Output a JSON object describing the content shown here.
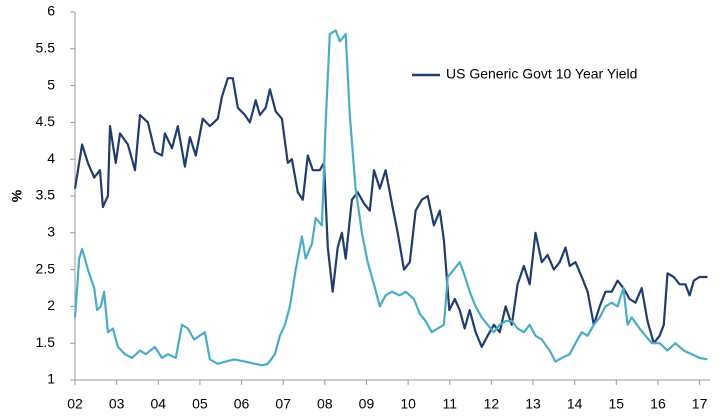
{
  "chart_data": {
    "type": "line",
    "ylabel": "%",
    "xlim": [
      2002,
      2017.25
    ],
    "xticks": [
      {
        "value": 2002,
        "label": "02"
      },
      {
        "value": 2003,
        "label": "03"
      },
      {
        "value": 2004,
        "label": "04"
      },
      {
        "value": 2005,
        "label": "05"
      },
      {
        "value": 2006,
        "label": "06"
      },
      {
        "value": 2007,
        "label": "07"
      },
      {
        "value": 2008,
        "label": "08"
      },
      {
        "value": 2009,
        "label": "09"
      },
      {
        "value": 2010,
        "label": "10"
      },
      {
        "value": 2011,
        "label": "11"
      },
      {
        "value": 2012,
        "label": "12"
      },
      {
        "value": 2013,
        "label": "13"
      },
      {
        "value": 2014,
        "label": "14"
      },
      {
        "value": 2015,
        "label": "15"
      },
      {
        "value": 2016,
        "label": "16"
      },
      {
        "value": 2017,
        "label": "17"
      }
    ],
    "ylim": [
      1,
      6
    ],
    "yticks": [
      1,
      1.5,
      2,
      2.5,
      3,
      3.5,
      4,
      4.5,
      5,
      5.5,
      6
    ],
    "grid": false,
    "legend_position": "top-right",
    "series": [
      {
        "name": "US Generic Govt 10 Year Yield",
        "color": "#1f3d6e",
        "x": [
          2002.0,
          2002.17,
          2002.31,
          2002.46,
          2002.6,
          2002.67,
          2002.79,
          2002.84,
          2002.98,
          2003.08,
          2003.27,
          2003.44,
          2003.56,
          2003.75,
          2003.92,
          2004.09,
          2004.16,
          2004.33,
          2004.47,
          2004.64,
          2004.76,
          2004.9,
          2005.07,
          2005.24,
          2005.43,
          2005.53,
          2005.67,
          2005.79,
          2005.91,
          2006.08,
          2006.2,
          2006.34,
          2006.44,
          2006.58,
          2006.68,
          2006.82,
          2006.97,
          2007.11,
          2007.21,
          2007.35,
          2007.47,
          2007.59,
          2007.71,
          2007.88,
          2007.98,
          2008.07,
          2008.19,
          2008.31,
          2008.41,
          2008.5,
          2008.65,
          2008.79,
          2008.94,
          2009.08,
          2009.18,
          2009.32,
          2009.46,
          2009.61,
          2009.75,
          2009.9,
          2010.04,
          2010.18,
          2010.33,
          2010.47,
          2010.62,
          2010.76,
          2010.86,
          2010.99,
          2011.12,
          2011.24,
          2011.36,
          2011.48,
          2011.62,
          2011.77,
          2011.91,
          2012.06,
          2012.2,
          2012.34,
          2012.49,
          2012.63,
          2012.78,
          2012.92,
          2013.06,
          2013.21,
          2013.35,
          2013.5,
          2013.64,
          2013.78,
          2013.88,
          2014.02,
          2014.17,
          2014.31,
          2014.46,
          2014.6,
          2014.74,
          2014.89,
          2015.03,
          2015.17,
          2015.32,
          2015.46,
          2015.61,
          2015.75,
          2015.9,
          2016.04,
          2016.14,
          2016.23,
          2016.38,
          2016.52,
          2016.66,
          2016.76,
          2016.86,
          2017.0,
          2017.19
        ],
        "values": [
          3.6,
          4.2,
          3.95,
          3.75,
          3.85,
          3.35,
          3.5,
          4.45,
          3.95,
          4.35,
          4.2,
          3.85,
          4.6,
          4.5,
          4.1,
          4.05,
          4.35,
          4.15,
          4.45,
          3.9,
          4.3,
          4.05,
          4.55,
          4.45,
          4.55,
          4.85,
          5.1,
          5.1,
          4.7,
          4.6,
          4.5,
          4.8,
          4.6,
          4.7,
          4.95,
          4.65,
          4.55,
          3.95,
          4.0,
          3.55,
          3.45,
          4.05,
          3.85,
          3.85,
          3.95,
          2.8,
          2.2,
          2.8,
          3.0,
          2.65,
          3.45,
          3.55,
          3.4,
          3.3,
          3.85,
          3.6,
          3.85,
          3.4,
          3.0,
          2.5,
          2.6,
          3.3,
          3.45,
          3.5,
          3.1,
          3.3,
          2.9,
          1.95,
          2.1,
          1.95,
          1.7,
          1.95,
          1.65,
          1.45,
          1.6,
          1.75,
          1.65,
          2.0,
          1.75,
          2.3,
          2.55,
          2.3,
          3.0,
          2.6,
          2.7,
          2.5,
          2.6,
          2.8,
          2.55,
          2.6,
          2.4,
          2.2,
          1.75,
          2.0,
          2.2,
          2.2,
          2.35,
          2.25,
          2.1,
          2.05,
          2.25,
          1.8,
          1.5,
          1.6,
          1.75,
          2.45,
          2.4,
          2.3,
          2.3,
          2.15,
          2.35,
          2.4,
          2.4
        ]
      },
      {
        "color": "#4bacc6",
        "x": [
          2002.0,
          2002.1,
          2002.17,
          2002.31,
          2002.46,
          2002.53,
          2002.62,
          2002.7,
          2002.79,
          2002.91,
          2003.03,
          2003.2,
          2003.37,
          2003.56,
          2003.7,
          2003.92,
          2004.09,
          2004.23,
          2004.42,
          2004.57,
          2004.71,
          2004.86,
          2004.99,
          2005.12,
          2005.24,
          2005.43,
          2005.62,
          2005.82,
          2006.08,
          2006.32,
          2006.49,
          2006.63,
          2006.8,
          2006.92,
          2007.04,
          2007.16,
          2007.3,
          2007.45,
          2007.54,
          2007.69,
          2007.78,
          2007.93,
          2008.02,
          2008.12,
          2008.26,
          2008.36,
          2008.5,
          2008.6,
          2008.74,
          2008.89,
          2009.03,
          2009.18,
          2009.32,
          2009.46,
          2009.61,
          2009.8,
          2009.94,
          2010.14,
          2010.28,
          2010.42,
          2010.57,
          2010.71,
          2010.86,
          2010.95,
          2011.1,
          2011.24,
          2011.34,
          2011.48,
          2011.62,
          2011.77,
          2011.91,
          2012.06,
          2012.2,
          2012.34,
          2012.49,
          2012.63,
          2012.78,
          2012.92,
          2013.06,
          2013.21,
          2013.4,
          2013.54,
          2013.69,
          2013.88,
          2014.02,
          2014.17,
          2014.31,
          2014.46,
          2014.6,
          2014.74,
          2014.89,
          2015.03,
          2015.17,
          2015.27,
          2015.37,
          2015.56,
          2015.7,
          2015.85,
          2016.04,
          2016.23,
          2016.42,
          2016.62,
          2016.81,
          2017.0,
          2017.19
        ],
        "values": [
          1.85,
          2.65,
          2.78,
          2.5,
          2.25,
          1.95,
          2.0,
          2.2,
          1.65,
          1.7,
          1.45,
          1.35,
          1.3,
          1.4,
          1.35,
          1.45,
          1.3,
          1.35,
          1.3,
          1.75,
          1.7,
          1.55,
          1.6,
          1.65,
          1.28,
          1.22,
          1.25,
          1.28,
          1.25,
          1.22,
          1.2,
          1.22,
          1.35,
          1.6,
          1.75,
          2.0,
          2.5,
          2.95,
          2.65,
          2.85,
          3.2,
          3.1,
          4.5,
          5.7,
          5.75,
          5.6,
          5.7,
          4.6,
          3.6,
          3.0,
          2.6,
          2.3,
          2.0,
          2.15,
          2.2,
          2.15,
          2.2,
          2.1,
          1.9,
          1.8,
          1.65,
          1.7,
          1.75,
          2.4,
          2.5,
          2.6,
          2.45,
          2.2,
          2.0,
          1.85,
          1.75,
          1.65,
          1.75,
          1.8,
          1.8,
          1.7,
          1.65,
          1.75,
          1.6,
          1.55,
          1.4,
          1.25,
          1.3,
          1.35,
          1.5,
          1.65,
          1.6,
          1.75,
          1.85,
          2.0,
          2.05,
          2.0,
          2.25,
          1.75,
          1.85,
          1.7,
          1.6,
          1.5,
          1.5,
          1.4,
          1.5,
          1.4,
          1.35,
          1.3,
          1.28
        ]
      }
    ]
  }
}
